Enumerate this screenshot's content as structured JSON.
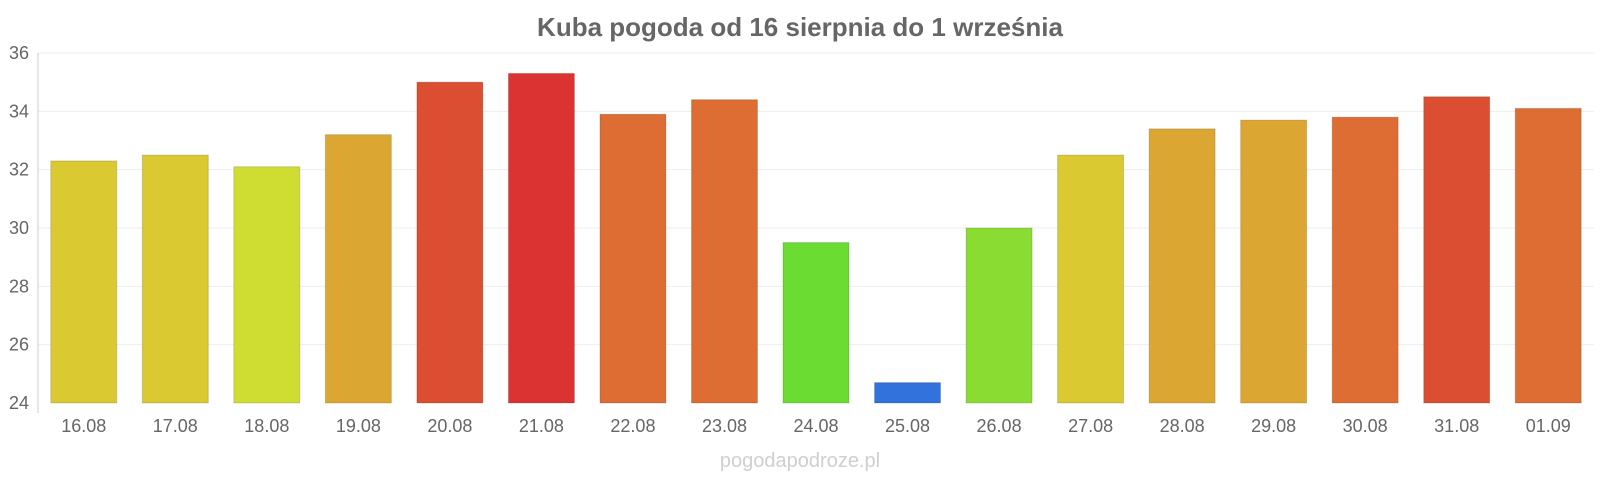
{
  "chart_data": {
    "type": "bar",
    "title": "Kuba pogoda od 16 sierpnia do 1 września",
    "xlabel": "",
    "ylabel": "",
    "ylim": [
      24,
      36
    ],
    "yticks": [
      "24",
      "26",
      "28",
      "30",
      "32",
      "34",
      "36"
    ],
    "grid": true,
    "legend": "none",
    "categories": [
      "16.08",
      "17.08",
      "18.08",
      "19.08",
      "20.08",
      "21.08",
      "22.08",
      "23.08",
      "24.08",
      "25.08",
      "26.08",
      "27.08",
      "28.08",
      "29.08",
      "30.08",
      "31.08",
      "01.09"
    ],
    "values": [
      32.3,
      32.5,
      32.1,
      33.2,
      35.0,
      35.3,
      33.9,
      34.4,
      29.5,
      24.7,
      30.0,
      32.5,
      33.4,
      33.7,
      33.8,
      34.5,
      34.1
    ],
    "colors": [
      "#dbc932",
      "#dbc932",
      "#cfdc32",
      "#dba732",
      "#db4e32",
      "#db3232",
      "#dd6d32",
      "#dd6d32",
      "#6adc32",
      "#3272dd",
      "#8adc32",
      "#dbc932",
      "#dba732",
      "#dba732",
      "#dd6d32",
      "#db4e32",
      "#dd6d32"
    ]
  },
  "watermark": "pogodapodroze.pl"
}
